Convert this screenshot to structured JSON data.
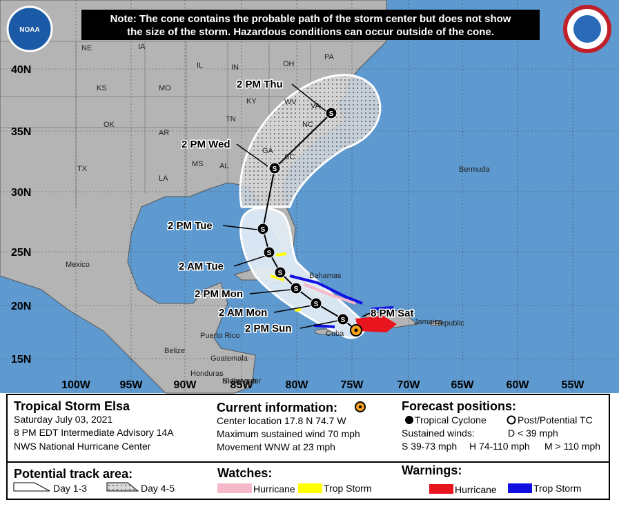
{
  "note": {
    "line1": "Note: The cone contains the probable path of the storm center but does not show",
    "line2": "the size of the storm. Hazardous conditions can occur outside of the cone."
  },
  "logos": {
    "left": "NOAA"
  },
  "map": {
    "lon_labels": [
      "100W",
      "95W",
      "90W",
      "85W",
      "80W",
      "75W",
      "70W",
      "65W",
      "60W",
      "55W"
    ],
    "lat_labels": [
      "40N",
      "35N",
      "30N",
      "25N",
      "20N",
      "15N"
    ],
    "places": [
      "NE",
      "IA",
      "IL",
      "IN",
      "OH",
      "PA",
      "KS",
      "MO",
      "KY",
      "WV",
      "VA",
      "OK",
      "AR",
      "TN",
      "NC",
      "TX",
      "MS",
      "AL",
      "GA",
      "SC",
      "LA",
      "Bermuda",
      "Mexico",
      "Bahamas",
      "Cuba",
      "Jamaica",
      "Republic",
      "Puerto Rico",
      "Belize",
      "Guatemala",
      "Honduras",
      "El Salvador",
      "Nicaragua"
    ],
    "forecast_labels": [
      "2 PM Sun",
      "2 AM Mon",
      "2 PM Mon",
      "2 AM Tue",
      "2 PM Tue",
      "2 PM Wed",
      "2 PM Thu",
      "8 PM Sat"
    ],
    "track_symbol": "S"
  },
  "info": {
    "storm": {
      "title": "Tropical Storm Elsa",
      "date": "Saturday July 03, 2021",
      "advisory": "8 PM EDT Intermediate Advisory 14A",
      "center": "NWS National Hurricane Center"
    },
    "current": {
      "title": "Current information:",
      "location": "Center location 17.8 N 74.7 W",
      "wind": "Maximum sustained wind 70 mph",
      "movement": "Movement WNW at 23 mph"
    },
    "forecast": {
      "title": "Forecast positions:",
      "tc": "Tropical Cyclone",
      "post": "Post/Potential TC",
      "winds": "Sustained winds:",
      "d": "D < 39 mph",
      "s": "S 39-73 mph",
      "h": "H 74-110 mph",
      "m": "M > 110 mph"
    },
    "track_area": {
      "title": "Potential track area:",
      "day13": "Day 1-3",
      "day45": "Day 4-5"
    },
    "watches": {
      "title": "Watches:",
      "hurricane": "Hurricane",
      "trop_storm": "Trop Storm"
    },
    "warnings": {
      "title": "Warnings:",
      "hurricane": "Hurricane",
      "trop_storm": "Trop Storm"
    }
  }
}
